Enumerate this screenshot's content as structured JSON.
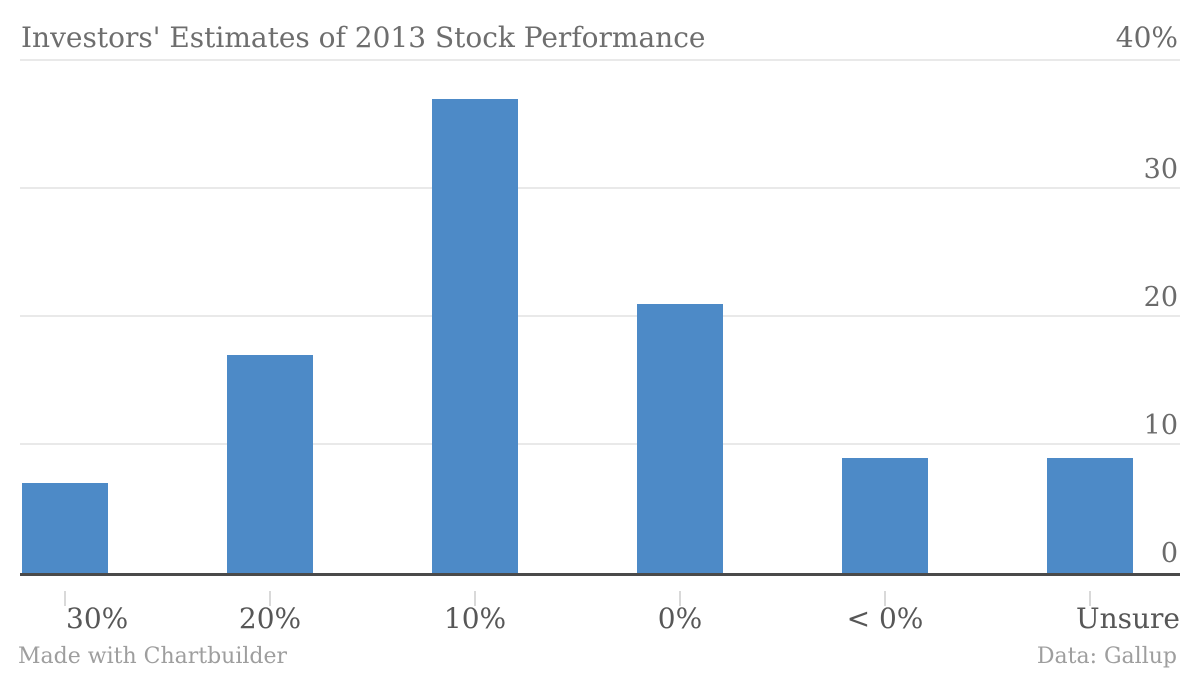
{
  "header": {
    "title": "Investors' Estimates of 2013 Stock Performance"
  },
  "chart_data": {
    "type": "bar",
    "title": "Investors' Estimates of 2013 Stock Performance",
    "categories": [
      "30%",
      "20%",
      "10%",
      "0%",
      "< 0%",
      "Unsure"
    ],
    "values": [
      7,
      17,
      37,
      21,
      9,
      9
    ],
    "xlabel": "",
    "ylabel": "",
    "ylim": [
      0,
      40
    ],
    "yticks": [
      0,
      10,
      20,
      30,
      40
    ],
    "ytick_labels": [
      "0",
      "10",
      "20",
      "30",
      "40%"
    ],
    "grid": true,
    "legend": "none",
    "bar_color": "#4D8AC7"
  },
  "colors": {
    "bar": "#4D8AC7",
    "gridline": "#e9e9e9",
    "axis_line": "#4a4a4a",
    "tick": "#d9d9d9",
    "title_text": "#6e6e6e",
    "y_label_text": "#6b6b6b",
    "x_label_text": "#575757",
    "footer_text": "#9e9e9e"
  },
  "footer": {
    "credit": "Made with Chartbuilder",
    "source": "Data: Gallup"
  }
}
